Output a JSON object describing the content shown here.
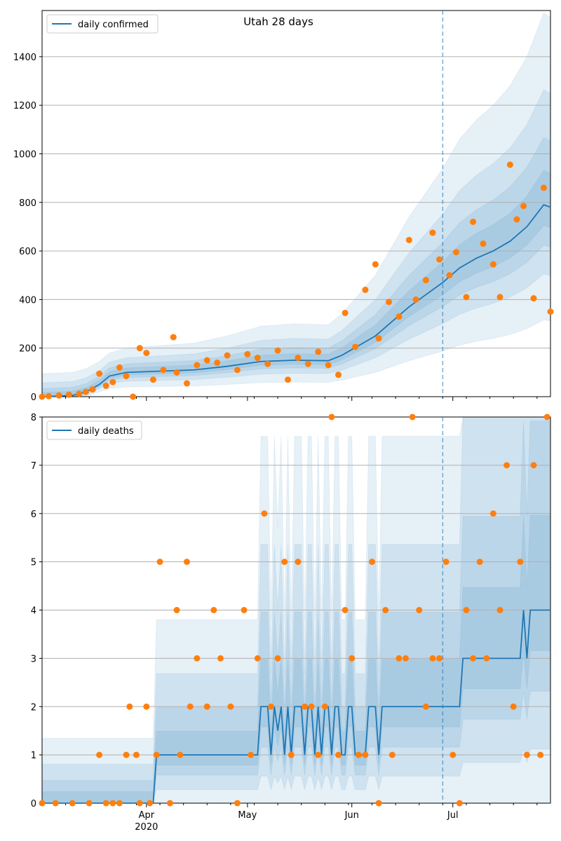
{
  "title": "Utah 28 days",
  "colors": {
    "line": "#1f77b4",
    "points": "#ff7f0e",
    "band": "#1f77b4",
    "grid": "#b0b0b0",
    "axis": "#000000"
  },
  "chart_data": [
    {
      "type": "line",
      "legend_label": "daily confirmed",
      "legend_position": "top-left",
      "grid": "horizontal",
      "ylim": [
        0,
        1590
      ],
      "yticks": [
        0,
        200,
        400,
        600,
        800,
        1000,
        1200,
        1400
      ],
      "forecast_start": "2020-06-28",
      "series": [
        {
          "name": "daily confirmed",
          "kind": "line",
          "x": [
            "2020-03-01",
            "2020-03-10",
            "2020-03-14",
            "2020-03-18",
            "2020-03-21",
            "2020-03-26",
            "2020-04-05",
            "2020-04-15",
            "2020-04-25",
            "2020-05-05",
            "2020-05-15",
            "2020-05-25",
            "2020-05-29",
            "2020-06-03",
            "2020-06-08",
            "2020-06-13",
            "2020-06-18",
            "2020-06-23",
            "2020-06-28",
            "2020-07-03",
            "2020-07-08",
            "2020-07-13",
            "2020-07-18",
            "2020-07-23",
            "2020-07-28",
            "2020-07-30"
          ],
          "y": [
            0,
            5,
            20,
            50,
            85,
            100,
            105,
            110,
            125,
            145,
            150,
            148,
            170,
            210,
            250,
            310,
            370,
            420,
            470,
            530,
            570,
            600,
            640,
            700,
            790,
            780
          ]
        },
        {
          "name": "observed",
          "kind": "points",
          "x": [
            "2020-03-01",
            "2020-03-03",
            "2020-03-06",
            "2020-03-09",
            "2020-03-12",
            "2020-03-14",
            "2020-03-16",
            "2020-03-18",
            "2020-03-20",
            "2020-03-22",
            "2020-03-24",
            "2020-03-26",
            "2020-03-28",
            "2020-03-30",
            "2020-04-01",
            "2020-04-03",
            "2020-04-06",
            "2020-04-09",
            "2020-04-10",
            "2020-04-13",
            "2020-04-16",
            "2020-04-19",
            "2020-04-22",
            "2020-04-25",
            "2020-04-28",
            "2020-05-01",
            "2020-05-04",
            "2020-05-07",
            "2020-05-10",
            "2020-05-13",
            "2020-05-16",
            "2020-05-19",
            "2020-05-22",
            "2020-05-25",
            "2020-05-28",
            "2020-05-30",
            "2020-06-02",
            "2020-06-05",
            "2020-06-08",
            "2020-06-09",
            "2020-06-12",
            "2020-06-15",
            "2020-06-18",
            "2020-06-20",
            "2020-06-23",
            "2020-06-25",
            "2020-06-27",
            "2020-06-30",
            "2020-07-02",
            "2020-07-05",
            "2020-07-07",
            "2020-07-10",
            "2020-07-13",
            "2020-07-15",
            "2020-07-18",
            "2020-07-20",
            "2020-07-22",
            "2020-07-25",
            "2020-07-28",
            "2020-07-30"
          ],
          "y": [
            0,
            2,
            5,
            8,
            12,
            20,
            30,
            95,
            45,
            60,
            120,
            85,
            0,
            200,
            180,
            70,
            110,
            245,
            100,
            55,
            130,
            150,
            140,
            170,
            110,
            175,
            160,
            135,
            190,
            70,
            160,
            135,
            185,
            130,
            90,
            345,
            205,
            440,
            545,
            240,
            390,
            330,
            645,
            400,
            480,
            675,
            565,
            500,
            595,
            410,
            720,
            630,
            545,
            410,
            955,
            730,
            785,
            405,
            860,
            350
          ]
        }
      ]
    },
    {
      "type": "line",
      "legend_label": "daily deaths",
      "legend_position": "top-left",
      "grid": "horizontal",
      "ylim": [
        0,
        8
      ],
      "yticks": [
        0,
        1,
        2,
        3,
        4,
        5,
        6,
        7,
        8
      ],
      "forecast_start": "2020-06-28",
      "x_ticks": [
        {
          "label": "Apr",
          "sub": "2020",
          "date": "2020-04-01"
        },
        {
          "label": "May",
          "sub": "",
          "date": "2020-05-01"
        },
        {
          "label": "Jun",
          "sub": "",
          "date": "2020-06-01"
        },
        {
          "label": "Jul",
          "sub": "",
          "date": "2020-07-01"
        }
      ],
      "series": [
        {
          "name": "daily deaths",
          "kind": "line",
          "x": [
            "2020-03-01",
            "2020-04-03",
            "2020-04-04",
            "2020-05-04",
            "2020-05-05",
            "2020-05-07",
            "2020-05-08",
            "2020-05-09",
            "2020-05-10",
            "2020-05-11",
            "2020-05-12",
            "2020-05-13",
            "2020-05-14",
            "2020-05-15",
            "2020-05-16",
            "2020-05-17",
            "2020-05-18",
            "2020-05-19",
            "2020-05-20",
            "2020-05-21",
            "2020-05-22",
            "2020-05-23",
            "2020-05-24",
            "2020-05-25",
            "2020-05-26",
            "2020-05-27",
            "2020-05-28",
            "2020-05-29",
            "2020-05-30",
            "2020-05-31",
            "2020-06-01",
            "2020-06-02",
            "2020-06-03",
            "2020-06-04",
            "2020-06-05",
            "2020-06-06",
            "2020-06-07",
            "2020-06-08",
            "2020-06-09",
            "2020-06-10",
            "2020-06-11",
            "2020-06-12",
            "2020-06-13",
            "2020-06-14",
            "2020-07-03",
            "2020-07-04",
            "2020-07-21",
            "2020-07-22",
            "2020-07-23",
            "2020-07-24",
            "2020-07-30"
          ],
          "y": [
            0,
            0,
            1,
            1,
            2,
            2,
            1,
            2,
            1.5,
            2,
            1,
            2,
            1,
            2,
            2,
            2,
            1,
            2,
            2,
            1,
            2,
            1,
            2,
            2,
            1,
            2,
            2,
            1,
            1,
            2,
            2,
            1,
            1,
            1,
            1,
            2,
            2,
            2,
            1,
            2,
            2,
            2,
            2,
            2,
            2,
            3,
            3,
            4,
            3,
            4,
            4
          ]
        },
        {
          "name": "observed",
          "kind": "points",
          "x": [
            "2020-03-01",
            "2020-03-05",
            "2020-03-10",
            "2020-03-15",
            "2020-03-18",
            "2020-03-20",
            "2020-03-22",
            "2020-03-24",
            "2020-03-26",
            "2020-03-27",
            "2020-03-29",
            "2020-03-30",
            "2020-04-01",
            "2020-04-02",
            "2020-04-04",
            "2020-04-05",
            "2020-04-08",
            "2020-04-10",
            "2020-04-11",
            "2020-04-13",
            "2020-04-14",
            "2020-04-16",
            "2020-04-19",
            "2020-04-21",
            "2020-04-23",
            "2020-04-26",
            "2020-04-28",
            "2020-04-30",
            "2020-05-02",
            "2020-05-04",
            "2020-05-06",
            "2020-05-08",
            "2020-05-10",
            "2020-05-12",
            "2020-05-14",
            "2020-05-16",
            "2020-05-18",
            "2020-05-20",
            "2020-05-22",
            "2020-05-24",
            "2020-05-26",
            "2020-05-28",
            "2020-05-30",
            "2020-06-01",
            "2020-06-03",
            "2020-06-05",
            "2020-06-07",
            "2020-06-09",
            "2020-06-11",
            "2020-06-13",
            "2020-06-15",
            "2020-06-17",
            "2020-06-19",
            "2020-06-21",
            "2020-06-23",
            "2020-06-25",
            "2020-06-27",
            "2020-06-29",
            "2020-07-01",
            "2020-07-03",
            "2020-07-05",
            "2020-07-07",
            "2020-07-09",
            "2020-07-11",
            "2020-07-13",
            "2020-07-15",
            "2020-07-17",
            "2020-07-19",
            "2020-07-21",
            "2020-07-23",
            "2020-07-25",
            "2020-07-27",
            "2020-07-29"
          ],
          "y": [
            0,
            0,
            0,
            0,
            1,
            0,
            0,
            0,
            1,
            2,
            1,
            0,
            2,
            0,
            1,
            5,
            0,
            4,
            1,
            5,
            2,
            3,
            2,
            4,
            3,
            2,
            0,
            4,
            1,
            3,
            6,
            2,
            3,
            5,
            1,
            5,
            2,
            2,
            1,
            2,
            8,
            1,
            4,
            3,
            1,
            1,
            5,
            0,
            4,
            1,
            3,
            3,
            8,
            4,
            2,
            3,
            3,
            5,
            1,
            0,
            4,
            3,
            5,
            3,
            6,
            4,
            7,
            2,
            5,
            1,
            7,
            1,
            8
          ]
        }
      ]
    }
  ]
}
